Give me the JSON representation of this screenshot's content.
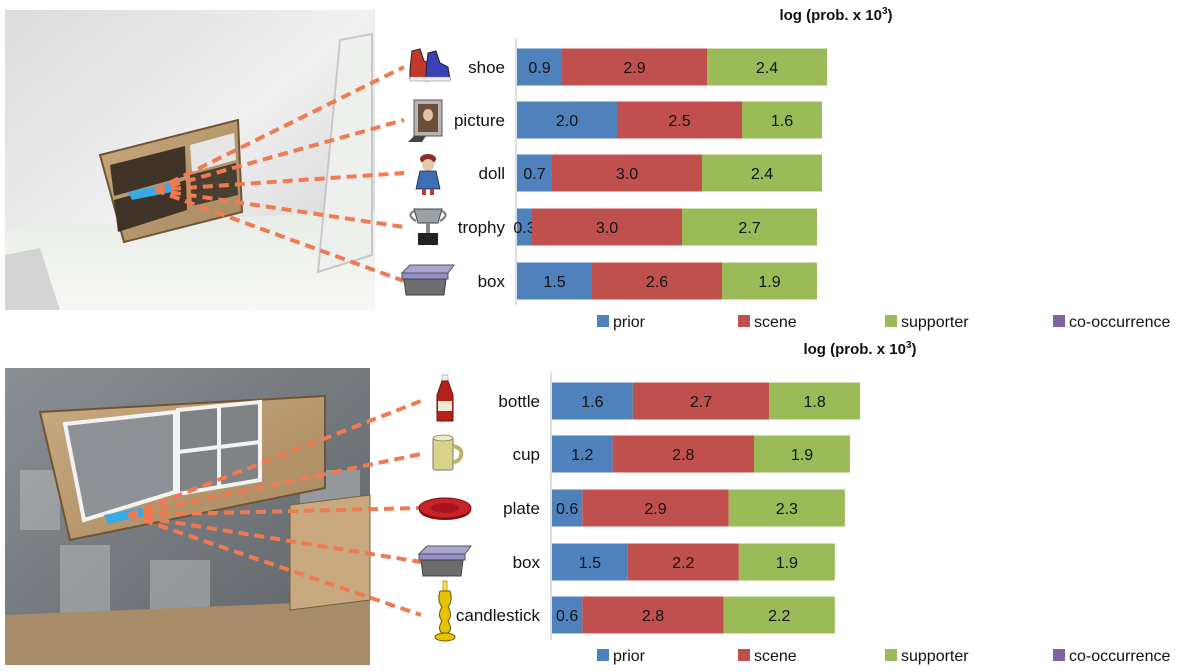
{
  "colors": {
    "prior": "#4f81bd",
    "scene": "#c0504d",
    "supporter": "#9bbb59",
    "co-occurrence": "#8064a2",
    "leader": "#f07a52"
  },
  "chart_data": [
    {
      "type": "bar",
      "orientation": "horizontal",
      "stacked": true,
      "title_prefix": "log (prob. x 10",
      "title_sup": "3",
      "title_suffix": ")",
      "categories": [
        "shoe",
        "picture",
        "doll",
        "trophy",
        "box"
      ],
      "icons": [
        "shoe-icon",
        "picture-frame-icon",
        "doll-icon",
        "trophy-icon",
        "storage-box-icon"
      ],
      "series": [
        {
          "name": "prior",
          "values": [
            0.9,
            2.0,
            0.7,
            0.3,
            1.5
          ]
        },
        {
          "name": "scene",
          "values": [
            2.9,
            2.5,
            3.0,
            3.0,
            2.6
          ]
        },
        {
          "name": "supporter",
          "values": [
            2.4,
            1.6,
            2.4,
            2.7,
            1.9
          ]
        },
        {
          "name": "co-occurrence",
          "values": [
            0,
            0,
            0,
            0,
            0
          ]
        }
      ],
      "legend_position": "bottom",
      "grid": false
    },
    {
      "type": "bar",
      "orientation": "horizontal",
      "stacked": true,
      "title_prefix": "log (prob. x 10",
      "title_sup": "3",
      "title_suffix": ")",
      "categories": [
        "bottle",
        "cup",
        "plate",
        "box",
        "candlestick"
      ],
      "icons": [
        "ketchup-bottle-icon",
        "mug-icon",
        "plate-icon",
        "storage-box-icon",
        "candlestick-icon"
      ],
      "series": [
        {
          "name": "prior",
          "values": [
            1.6,
            1.2,
            0.6,
            1.5,
            0.6
          ]
        },
        {
          "name": "scene",
          "values": [
            2.7,
            2.8,
            2.9,
            2.2,
            2.8
          ]
        },
        {
          "name": "supporter",
          "values": [
            1.8,
            1.9,
            2.3,
            1.9,
            2.2
          ]
        },
        {
          "name": "co-occurrence",
          "values": [
            0,
            0,
            0,
            0,
            0
          ]
        }
      ],
      "legend_position": "bottom",
      "grid": false
    }
  ],
  "scenes": [
    {
      "name": "bedroom-shelf-render",
      "icon": "shelf-scene-icon"
    },
    {
      "name": "kitchen-cabinet-render",
      "icon": "cabinet-scene-icon"
    }
  ]
}
